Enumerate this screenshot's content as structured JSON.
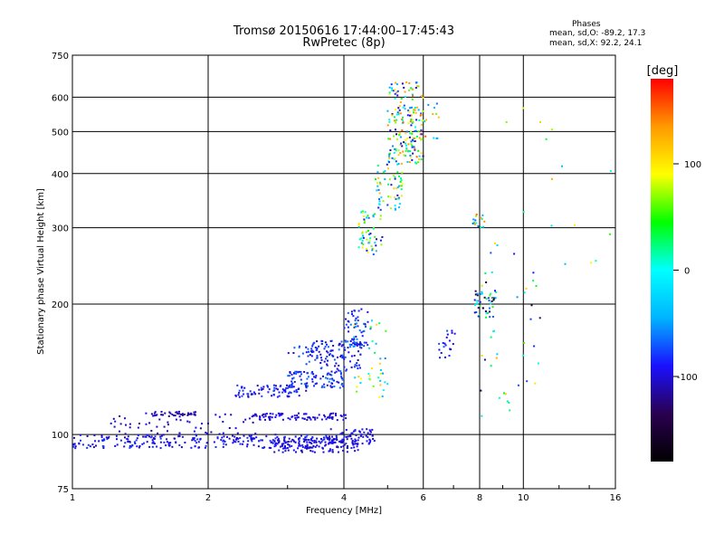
{
  "header": {
    "title": "Tromsø 20150616 17:44:00–17:45:43",
    "subtitle": "RwPretec (8p)"
  },
  "phases_box": {
    "title": "Phases",
    "o_line": "mean, sd,O: -89.2, 17.3",
    "x_line": "mean, sd,X: 92.2, 24.1"
  },
  "colorbar": {
    "label": "[deg]",
    "ticks": [
      "100",
      "0",
      "-100"
    ],
    "tick_values": [
      100,
      0,
      -100
    ],
    "range": [
      -180,
      180
    ],
    "stops": [
      "#000000",
      "#2a0050",
      "#1a10ff",
      "#00b4ff",
      "#00ffff",
      "#00ff00",
      "#ffff00",
      "#ff9a00",
      "#ff0000"
    ]
  },
  "chart_data": {
    "type": "scatter",
    "title": "Tromsø 20150616 17:44:00–17:45:43",
    "subtitle": "RwPretec (8p)",
    "xlabel": "Frequency [MHz]",
    "ylabel": "Stationary phase Virtual Height [km]",
    "x_scale": "log",
    "y_scale": "log",
    "xlim": [
      1,
      16
    ],
    "ylim": [
      75,
      750
    ],
    "x_ticks": [
      1,
      2,
      4,
      6,
      8,
      10,
      16
    ],
    "x_tick_labels": [
      "1",
      "2",
      "4",
      "6",
      "8",
      "10",
      "16"
    ],
    "y_ticks": [
      75,
      100,
      200,
      300,
      400,
      500,
      600,
      750
    ],
    "y_tick_labels": [
      "75",
      "100",
      "200",
      "300",
      "400",
      "500",
      "600",
      "750"
    ],
    "grid_x": [
      2,
      4,
      6,
      8,
      10
    ],
    "grid_y": [
      100,
      200,
      300,
      400,
      500,
      600
    ],
    "color_scale": "phase [deg], -180 to 180",
    "series": [
      {
        "clusters": [
          {
            "x": [
              1.0,
              3.7
            ],
            "y": [
              93,
              100
            ],
            "n": 260,
            "phase": [
              -110,
              -75
            ]
          },
          {
            "x": [
              1.2,
              2.6
            ],
            "y": [
              98,
              112
            ],
            "n": 60,
            "phase": [
              -120,
              -90
            ]
          },
          {
            "x": [
              1.5,
              1.9
            ],
            "y": [
              110,
              113
            ],
            "n": 40,
            "phase": [
              -120,
              -100
            ]
          },
          {
            "x": [
              2.5,
              4.1
            ],
            "y": [
              108,
              112
            ],
            "n": 90,
            "phase": [
              -110,
              -90
            ]
          },
          {
            "x": [
              2.8,
              4.3
            ],
            "y": [
              91,
              98
            ],
            "n": 120,
            "phase": [
              -110,
              -85
            ]
          },
          {
            "x": [
              3.7,
              4.7
            ],
            "y": [
              95,
              103
            ],
            "n": 70,
            "phase": [
              -110,
              -80
            ]
          },
          {
            "x": [
              2.3,
              3.3
            ],
            "y": [
              122,
              130
            ],
            "n": 80,
            "phase": [
              -110,
              -70
            ]
          },
          {
            "x": [
              3.0,
              4.0
            ],
            "y": [
              128,
              140
            ],
            "n": 90,
            "phase": [
              -110,
              -60
            ]
          },
          {
            "x": [
              3.3,
              4.4
            ],
            "y": [
              140,
              165
            ],
            "n": 110,
            "phase": [
              -110,
              -60
            ]
          },
          {
            "x": [
              3.0,
              3.8
            ],
            "y": [
              150,
              160
            ],
            "n": 25,
            "phase": [
              -110,
              -60
            ]
          },
          {
            "x": [
              4.0,
              4.6
            ],
            "y": [
              160,
              195
            ],
            "n": 50,
            "phase": [
              -110,
              -60
            ]
          },
          {
            "x": [
              4.2,
              5.0
            ],
            "y": [
              120,
              185
            ],
            "n": 40,
            "phase": [
              -60,
              120
            ]
          },
          {
            "x": [
              4.3,
              4.9
            ],
            "y": [
              260,
              330
            ],
            "n": 60,
            "phase": [
              -120,
              110
            ]
          },
          {
            "x": [
              4.7,
              5.4
            ],
            "y": [
              330,
              420
            ],
            "n": 60,
            "phase": [
              -110,
              120
            ]
          },
          {
            "x": [
              5.0,
              6.0
            ],
            "y": [
              420,
              650
            ],
            "n": 190,
            "phase": [
              -120,
              160
            ]
          },
          {
            "x": [
              5.7,
              6.5
            ],
            "y": [
              480,
              590
            ],
            "n": 20,
            "phase": [
              -90,
              160
            ]
          },
          {
            "x": [
              7.7,
              8.2
            ],
            "y": [
              300,
              330
            ],
            "n": 15,
            "phase": [
              -100,
              150
            ]
          },
          {
            "x": [
              7.8,
              8.7
            ],
            "y": [
              185,
              215
            ],
            "n": 45,
            "phase": [
              -170,
              60
            ]
          },
          {
            "x": [
              6.5,
              7.2
            ],
            "y": [
              150,
              175
            ],
            "n": 20,
            "phase": [
              -110,
              -60
            ]
          },
          {
            "x": [
              8.0,
              11.0
            ],
            "y": [
              110,
              280
            ],
            "n": 40,
            "phase": [
              -150,
              140
            ]
          },
          {
            "x": [
              9.0,
              16.0
            ],
            "y": [
              230,
              600
            ],
            "n": 15,
            "phase": [
              -60,
              150
            ]
          }
        ]
      }
    ]
  }
}
